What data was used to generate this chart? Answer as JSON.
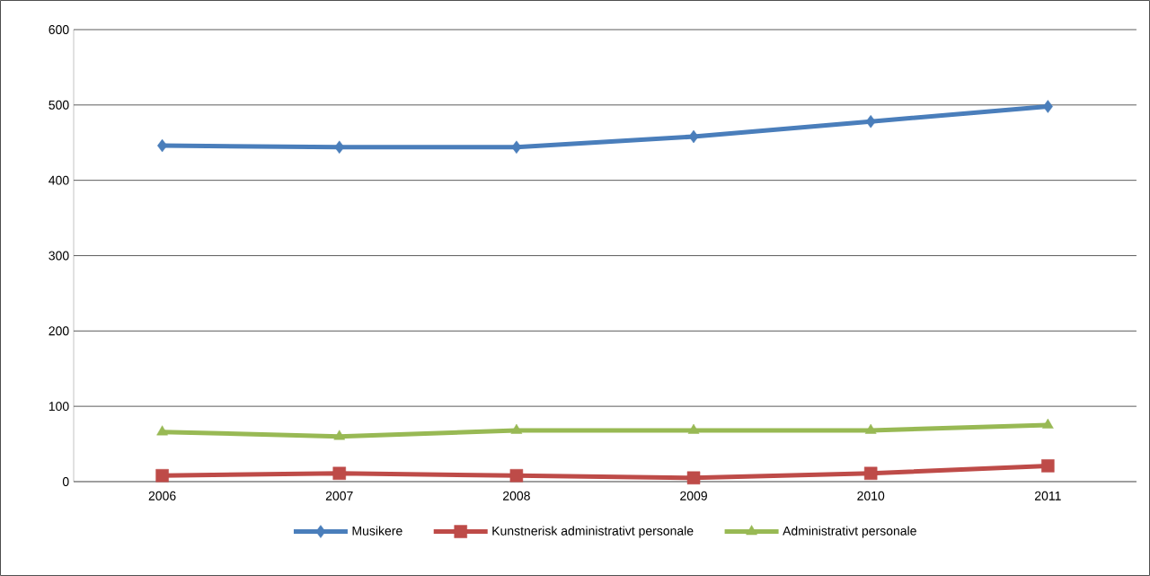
{
  "chart_data": {
    "type": "line",
    "categories": [
      "2006",
      "2007",
      "2008",
      "2009",
      "2010",
      "2011"
    ],
    "series": [
      {
        "name": "Musikere",
        "color": "#4a7ebb",
        "marker": "diamond",
        "values": [
          446,
          444,
          444,
          458,
          478,
          498
        ]
      },
      {
        "name": "Kunstnerisk administrativt personale",
        "color": "#be4b48",
        "marker": "square",
        "values": [
          8,
          11,
          8,
          5,
          11,
          21
        ]
      },
      {
        "name": "Administrativt personale",
        "color": "#98b954",
        "marker": "triangle",
        "values": [
          66,
          60,
          68,
          68,
          68,
          75
        ]
      }
    ],
    "ylim": [
      0,
      600
    ],
    "yticks": [
      0,
      100,
      200,
      300,
      400,
      500,
      600
    ],
    "grid": "y",
    "legend": "bottom",
    "line_style": "solid"
  }
}
